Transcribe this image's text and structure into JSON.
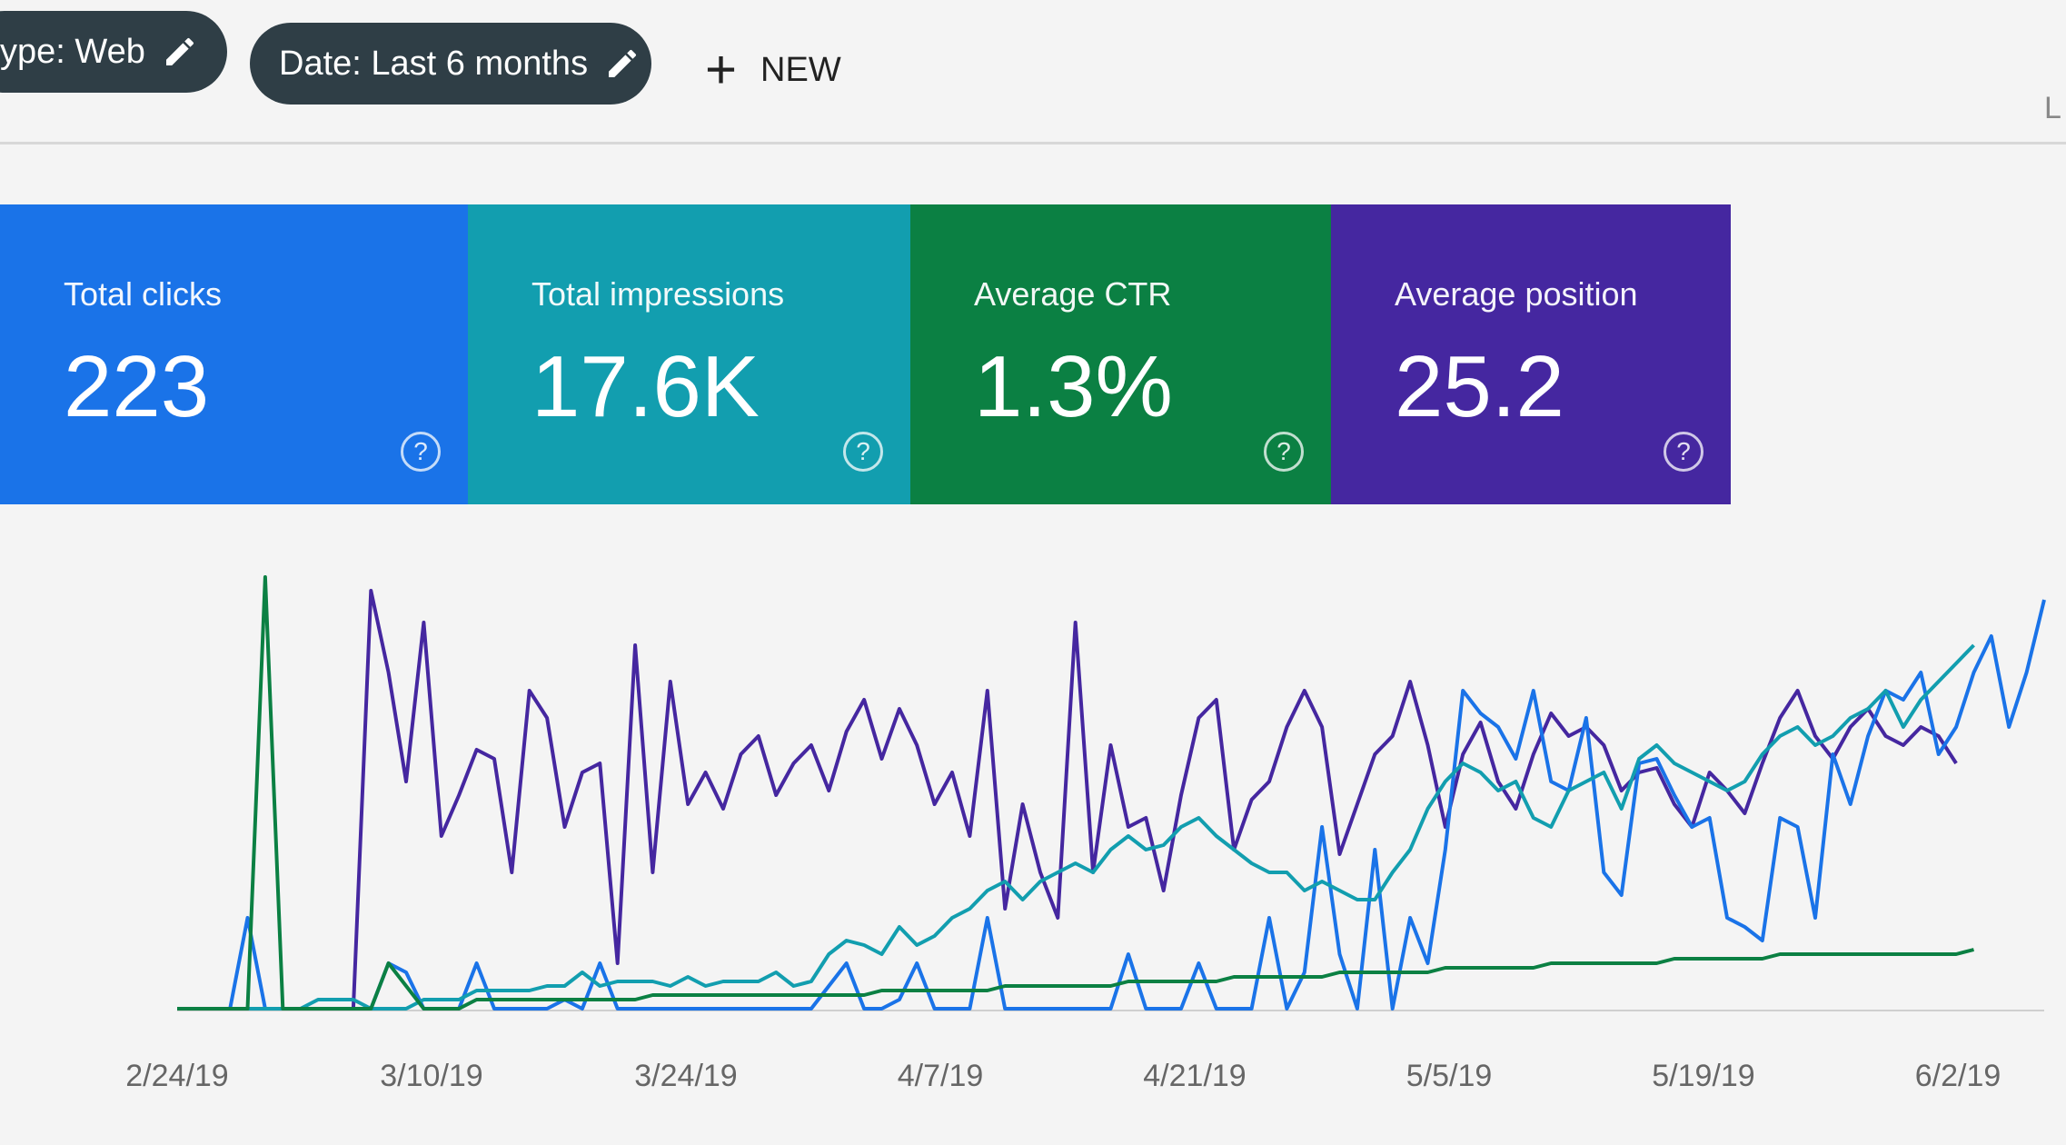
{
  "filters": {
    "type_chip": "ype: Web",
    "date_chip": "Date: Last 6 months",
    "new_label": "NEW"
  },
  "edge_glyph": "L",
  "metrics": [
    {
      "label": "Total clicks",
      "value": "223",
      "color": "#1a73e8"
    },
    {
      "label": "Total impressions",
      "value": "17.6K",
      "color": "#129eaf"
    },
    {
      "label": "Average CTR",
      "value": "1.3%",
      "color": "#0b8043"
    },
    {
      "label": "Average position",
      "value": "25.2",
      "color": "#4527a0"
    }
  ],
  "help_glyph": "?",
  "chart_data": {
    "type": "line",
    "title": "",
    "xlabel": "",
    "ylabel": "",
    "x_tick_labels": [
      "2/24/19",
      "3/10/19",
      "3/24/19",
      "4/7/19",
      "4/21/19",
      "5/5/19",
      "5/19/19",
      "6/2/19"
    ],
    "grid": false,
    "series": [
      {
        "color": "#4527a0",
        "values": [
          0,
          0,
          0,
          0,
          0,
          0,
          0,
          0,
          0,
          0,
          0,
          92,
          74,
          50,
          85,
          38,
          47,
          57,
          55,
          30,
          70,
          64,
          40,
          52,
          54,
          10,
          80,
          30,
          72,
          45,
          52,
          44,
          56,
          60,
          47,
          54,
          58,
          48,
          61,
          68,
          55,
          66,
          58,
          45,
          52,
          38,
          70,
          22,
          45,
          30,
          20,
          85,
          30,
          58,
          40,
          42,
          26,
          47,
          64,
          68,
          35,
          46,
          50,
          62,
          70,
          62,
          34,
          45,
          56,
          60,
          72,
          58,
          40,
          56,
          63,
          50,
          44,
          56,
          65,
          60,
          62,
          58,
          48,
          52,
          53,
          45,
          40,
          52,
          48,
          43,
          54,
          64,
          70,
          60,
          55,
          62,
          66,
          60,
          58,
          62,
          60,
          54
        ]
      },
      {
        "color": "#1a73e8",
        "values": [
          0,
          0,
          0,
          0,
          20,
          0,
          0,
          0,
          0,
          0,
          0,
          0,
          10,
          8,
          0,
          0,
          0,
          10,
          0,
          0,
          0,
          0,
          2,
          0,
          10,
          0,
          0,
          0,
          0,
          0,
          0,
          0,
          0,
          0,
          0,
          0,
          0,
          5,
          10,
          0,
          0,
          2,
          10,
          0,
          0,
          0,
          20,
          0,
          0,
          0,
          0,
          0,
          0,
          0,
          12,
          0,
          0,
          0,
          10,
          0,
          0,
          0,
          20,
          0,
          8,
          40,
          12,
          0,
          35,
          0,
          20,
          10,
          35,
          70,
          65,
          62,
          55,
          70,
          50,
          48,
          64,
          30,
          25,
          54,
          55,
          47,
          40,
          42,
          20,
          18,
          15,
          42,
          40,
          20,
          56,
          45,
          60,
          70,
          68,
          74,
          56,
          62,
          74,
          82,
          62,
          74,
          90
        ]
      },
      {
        "color": "#129eaf",
        "values": [
          0,
          0,
          0,
          0,
          0,
          0,
          0,
          0,
          2,
          2,
          2,
          0,
          0,
          0,
          2,
          2,
          2,
          4,
          4,
          4,
          4,
          5,
          5,
          8,
          5,
          6,
          6,
          6,
          5,
          7,
          5,
          6,
          6,
          6,
          8,
          5,
          6,
          12,
          15,
          14,
          12,
          18,
          14,
          16,
          20,
          22,
          26,
          28,
          24,
          28,
          30,
          32,
          30,
          35,
          38,
          35,
          36,
          40,
          42,
          38,
          35,
          32,
          30,
          30,
          26,
          28,
          26,
          24,
          24,
          30,
          35,
          44,
          50,
          54,
          52,
          48,
          50,
          42,
          40,
          48,
          50,
          52,
          44,
          55,
          58,
          54,
          52,
          50,
          48,
          50,
          56,
          60,
          62,
          58,
          60,
          64,
          66,
          70,
          62,
          68,
          72,
          76,
          80
        ]
      },
      {
        "color": "#0b8043",
        "values": [
          0,
          0,
          0,
          0,
          0,
          95,
          0,
          0,
          0,
          0,
          0,
          0,
          10,
          5,
          0,
          0,
          0,
          2,
          2,
          2,
          2,
          2,
          2,
          2,
          2,
          2,
          2,
          3,
          3,
          3,
          3,
          3,
          3,
          3,
          3,
          3,
          3,
          3,
          3,
          3,
          4,
          4,
          4,
          4,
          4,
          4,
          4,
          5,
          5,
          5,
          5,
          5,
          5,
          5,
          6,
          6,
          6,
          6,
          6,
          6,
          7,
          7,
          7,
          7,
          7,
          7,
          8,
          8,
          8,
          8,
          8,
          8,
          9,
          9,
          9,
          9,
          9,
          9,
          10,
          10,
          10,
          10,
          10,
          10,
          10,
          11,
          11,
          11,
          11,
          11,
          11,
          12,
          12,
          12,
          12,
          12,
          12,
          12,
          12,
          12,
          12,
          12,
          13
        ]
      }
    ]
  }
}
